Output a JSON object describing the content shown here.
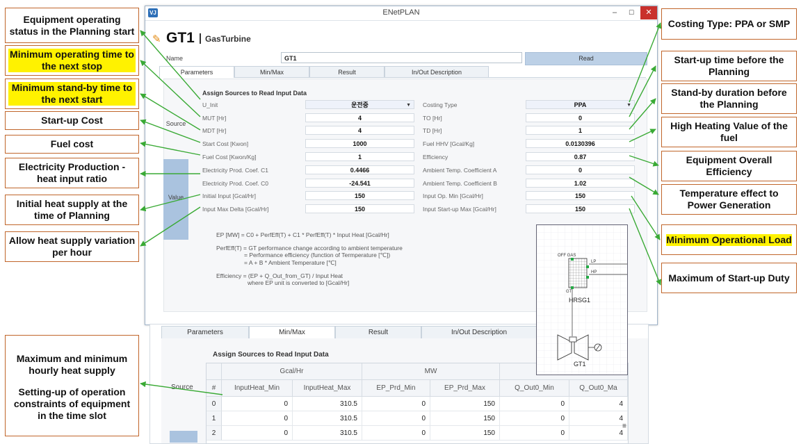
{
  "window": {
    "app_icon": "VJ",
    "title": "ENetPLAN",
    "min_glyph": "–",
    "max_glyph": "☐",
    "close_glyph": "✕"
  },
  "header": {
    "title": "GT1",
    "subtitle": "GasTurbine"
  },
  "name_row": {
    "label": "Name",
    "value": "GT1",
    "read_button": "Read"
  },
  "tabs": [
    "Parameters",
    "Min/Max",
    "Result",
    "In/Out Description"
  ],
  "panel": {
    "section_title": "Assign Sources to Read Input Data",
    "source_label": "Source",
    "value_label": "Value",
    "left_params": [
      {
        "label": "U_Init",
        "value": "운전중"
      },
      {
        "label": "MUT [Hr]",
        "value": "4"
      },
      {
        "label": "MDT [Hr]",
        "value": "4"
      },
      {
        "label": "Start Cost [Kwon]",
        "value": "1000"
      },
      {
        "label": "Fuel Cost [Kwon/Kg]",
        "value": "1"
      },
      {
        "label": "Electricity Prod. Coef. C1",
        "value": "0.4466"
      },
      {
        "label": "Electricity Prod. Coef. C0",
        "value": "-24.541"
      },
      {
        "label": "Initial Input [Gcal/Hr]",
        "value": "150"
      },
      {
        "label": "Input Max Delta [Gcal/Hr]",
        "value": "150"
      }
    ],
    "right_params": [
      {
        "label": "Costing Type",
        "value": "PPA"
      },
      {
        "label": "TO [Hr]",
        "value": "0"
      },
      {
        "label": "TD [Hr]",
        "value": "1"
      },
      {
        "label": "Fuel HHV [Gcal/Kg]",
        "value": "0.0130396"
      },
      {
        "label": "Efficiency",
        "value": "0.87"
      },
      {
        "label": "Ambient Temp. Coefficient A",
        "value": "0"
      },
      {
        "label": "Ambient Temp. Coefficient B",
        "value": "1.02"
      },
      {
        "label": "Input Op. Min [Gcal/Hr]",
        "value": "150"
      },
      {
        "label": "Input Start-up Max [Gcal/Hr]",
        "value": "150"
      }
    ],
    "formulas": [
      "EP [MW] = C0 + PerfEff(T) + C1 * PerfEff(T) * Input Heat [Gcal/Hr]",
      "PerfEff(T) = GT performance change according to ambient temperature",
      "= Performance efficiency (function of Termperature [℃])",
      "= A + B * Ambient Temperature [℃]",
      "Efficiency = (EP + Q_Out_from_GT) / Input Heat",
      "where EP unit is converted to [Gcal/Hr]"
    ]
  },
  "diagram": {
    "off_gas": "OFF GAS",
    "lp": "LP",
    "hp": "HP",
    "gt_port": "GT",
    "hrsg": "HRSG1",
    "turbine": "GT1",
    "accent": "#22aa44"
  },
  "minmax": {
    "tabs": [
      "Parameters",
      "Min/Max",
      "Result",
      "In/Out Description"
    ],
    "section_title": "Assign Sources to Read Input Data",
    "source_label": "Source",
    "groups": [
      "Gcal/Hr",
      "MW"
    ],
    "columns": [
      "#",
      "InputHeat_Min",
      "InputHeat_Max",
      "EP_Prd_Min",
      "EP_Prd_Max",
      "Q_Out0_Min",
      "Q_Out0_Ma"
    ],
    "rows": [
      [
        "0",
        "0",
        "310.5",
        "0",
        "150",
        "0",
        "4"
      ],
      [
        "1",
        "0",
        "310.5",
        "0",
        "150",
        "0",
        "4"
      ],
      [
        "2",
        "0",
        "310.5",
        "0",
        "150",
        "0",
        "4"
      ]
    ],
    "scroll_glyph": "≡"
  },
  "annotations": {
    "left": [
      "Equipment operating status in the Planning start",
      "Minimum operating time to the next stop",
      "Minimum stand-by time to the next start",
      "Start-up Cost",
      "Fuel cost",
      "Electricity Production - heat input ratio",
      "Initial heat supply at the time of Planning",
      "Allow heat supply variation per hour",
      "Maximum and minimum hourly heat supply",
      "Setting-up of operation constraints of equipment in the time slot"
    ],
    "right": [
      "Costing Type:  PPA or SMP",
      "Start-up time before the Planning",
      "Stand-by duration before the Planning",
      "High Heating Value of the fuel",
      "Equipment Overall Efficiency",
      "Temperature effect to Power Generation",
      "Minimum Operational Load",
      "Maximum of Start-up Duty"
    ],
    "box_border": "#c0652a",
    "arrow_color": "#3aaa35",
    "highlight": "#fff200"
  }
}
